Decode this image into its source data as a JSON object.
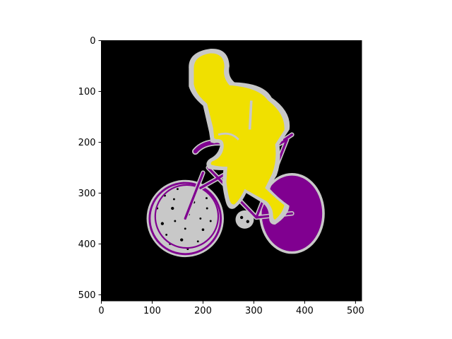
{
  "chart_data": {
    "type": "heatmap",
    "title": "",
    "xlabel": "",
    "ylabel": "",
    "image_size": [
      512,
      512
    ],
    "xlim": [
      0,
      512
    ],
    "ylim": [
      512,
      0
    ],
    "x_ticks": [
      0,
      100,
      200,
      300,
      400,
      500
    ],
    "y_ticks": [
      0,
      100,
      200,
      300,
      400,
      500
    ],
    "x_tick_labels": [
      "0",
      "100",
      "200",
      "300",
      "400",
      "500"
    ],
    "y_tick_labels": [
      "0",
      "100",
      "200",
      "300",
      "400",
      "500"
    ],
    "grid": false,
    "legend": "none",
    "segmentation_classes": [
      {
        "region": "background",
        "color": "#000000"
      },
      {
        "region": "person",
        "color": "#f0e000"
      },
      {
        "region": "bicycle",
        "color": "#800090"
      },
      {
        "region": "boundary",
        "color": "#c8c8c8"
      }
    ]
  }
}
